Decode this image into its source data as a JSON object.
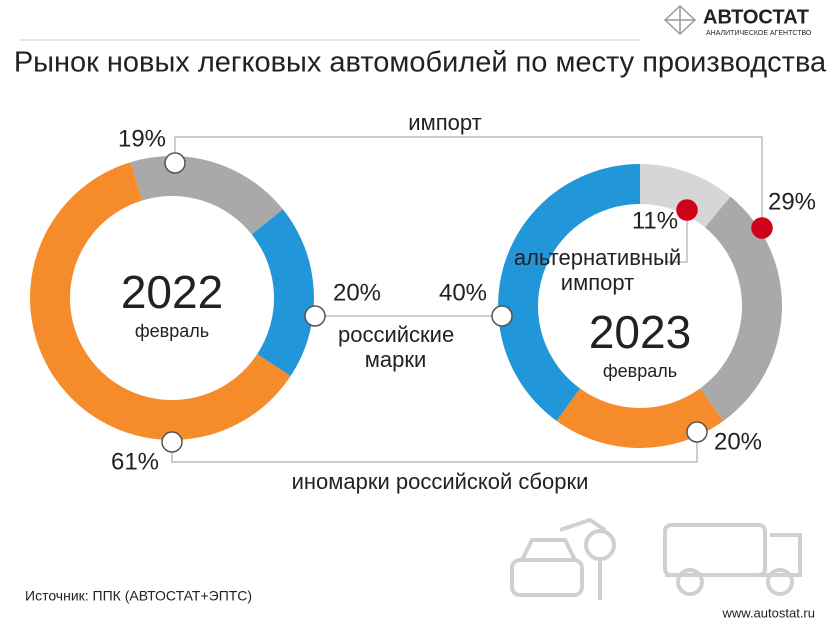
{
  "title": "Рынок новых легковых автомобилей по месту производства",
  "logo": {
    "name": "АВТОСТАТ",
    "tagline": "АНАЛИТИЧЕСКОЕ АГЕНТСТВО"
  },
  "categories": [
    "импорт",
    "российские марки",
    "иномарки российской сборки",
    "альтернативный импорт"
  ],
  "chart_data": [
    {
      "type": "donut",
      "center_label": "2022",
      "center_sublabel": "февраль",
      "values": [
        19,
        20,
        61,
        null
      ],
      "value_labels": [
        "19%",
        "20%",
        "61%",
        null
      ],
      "colors": [
        "#a9a9a9",
        "#2196d8",
        "#f68b2c",
        null
      ]
    },
    {
      "type": "donut",
      "center_label": "2023",
      "center_sublabel": "февраль",
      "values": [
        29,
        40,
        20,
        11
      ],
      "value_labels": [
        "29%",
        "40%",
        "20%",
        "11%"
      ],
      "colors": [
        "#a9a9a9",
        "#2196d8",
        "#f68b2c",
        "#d6d6d6"
      ]
    }
  ],
  "source": "Источник: ППК (АВТОСТАТ+ЭПТС)",
  "url": "www.autostat.ru"
}
